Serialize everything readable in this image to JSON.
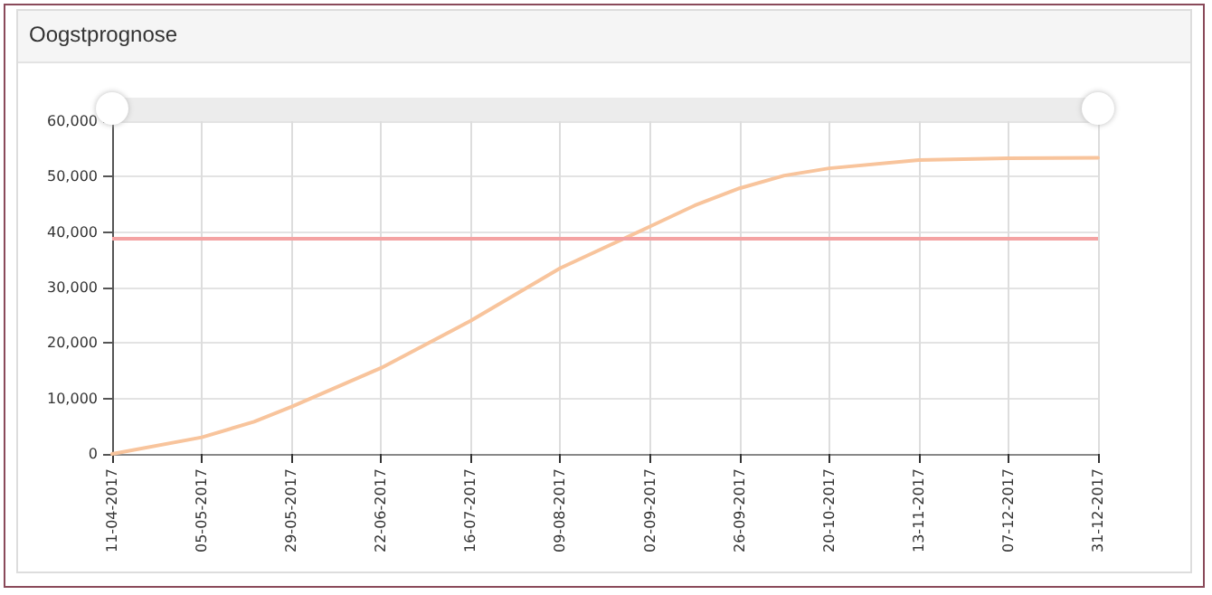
{
  "chart_data": {
    "type": "line",
    "title": "Oogstprognose",
    "x": [
      "2017-04-11",
      "2017-05-05",
      "2017-05-19",
      "2017-05-29",
      "2017-06-22",
      "2017-07-16",
      "2017-08-09",
      "2017-09-02",
      "2017-09-14",
      "2017-09-26",
      "2017-10-08",
      "2017-10-20",
      "2017-11-13",
      "2017-12-07",
      "2017-12-31"
    ],
    "series": [
      {
        "color": "#f8c49c",
        "values": [
          0,
          3000,
          5800,
          8500,
          15500,
          24000,
          33500,
          41000,
          44800,
          47900,
          50200,
          51500,
          53000,
          53300,
          53400
        ]
      }
    ],
    "xlim": [
      "2017-04-11",
      "2017-12-31"
    ],
    "xticks": [
      {
        "value": "2017-04-11",
        "label": "11-04-2017"
      },
      {
        "value": "2017-05-05",
        "label": "05-05-2017"
      },
      {
        "value": "2017-05-29",
        "label": "29-05-2017"
      },
      {
        "value": "2017-06-22",
        "label": "22-06-2017"
      },
      {
        "value": "2017-07-16",
        "label": "16-07-2017"
      },
      {
        "value": "2017-08-09",
        "label": "09-08-2017"
      },
      {
        "value": "2017-09-02",
        "label": "02-09-2017"
      },
      {
        "value": "2017-09-26",
        "label": "26-09-2017"
      },
      {
        "value": "2017-10-20",
        "label": "20-10-2017"
      },
      {
        "value": "2017-11-13",
        "label": "13-11-2017"
      },
      {
        "value": "2017-12-07",
        "label": "07-12-2017"
      },
      {
        "value": "2017-12-31",
        "label": "31-12-2017"
      }
    ],
    "ylim": [
      0,
      60000
    ],
    "yticks": [
      {
        "value": 0,
        "label": "0"
      },
      {
        "value": 10000,
        "label": "10,000"
      },
      {
        "value": 20000,
        "label": "20,000"
      },
      {
        "value": 30000,
        "label": "30,000"
      },
      {
        "value": 40000,
        "label": "40,000"
      },
      {
        "value": 50000,
        "label": "50,000"
      },
      {
        "value": 60000,
        "label": "60,000"
      }
    ],
    "ref_lines": [
      {
        "axis": "y",
        "value": 39000,
        "color": "#f4a3a3"
      }
    ],
    "grid": true,
    "marker": "none",
    "line_style": "solid"
  }
}
